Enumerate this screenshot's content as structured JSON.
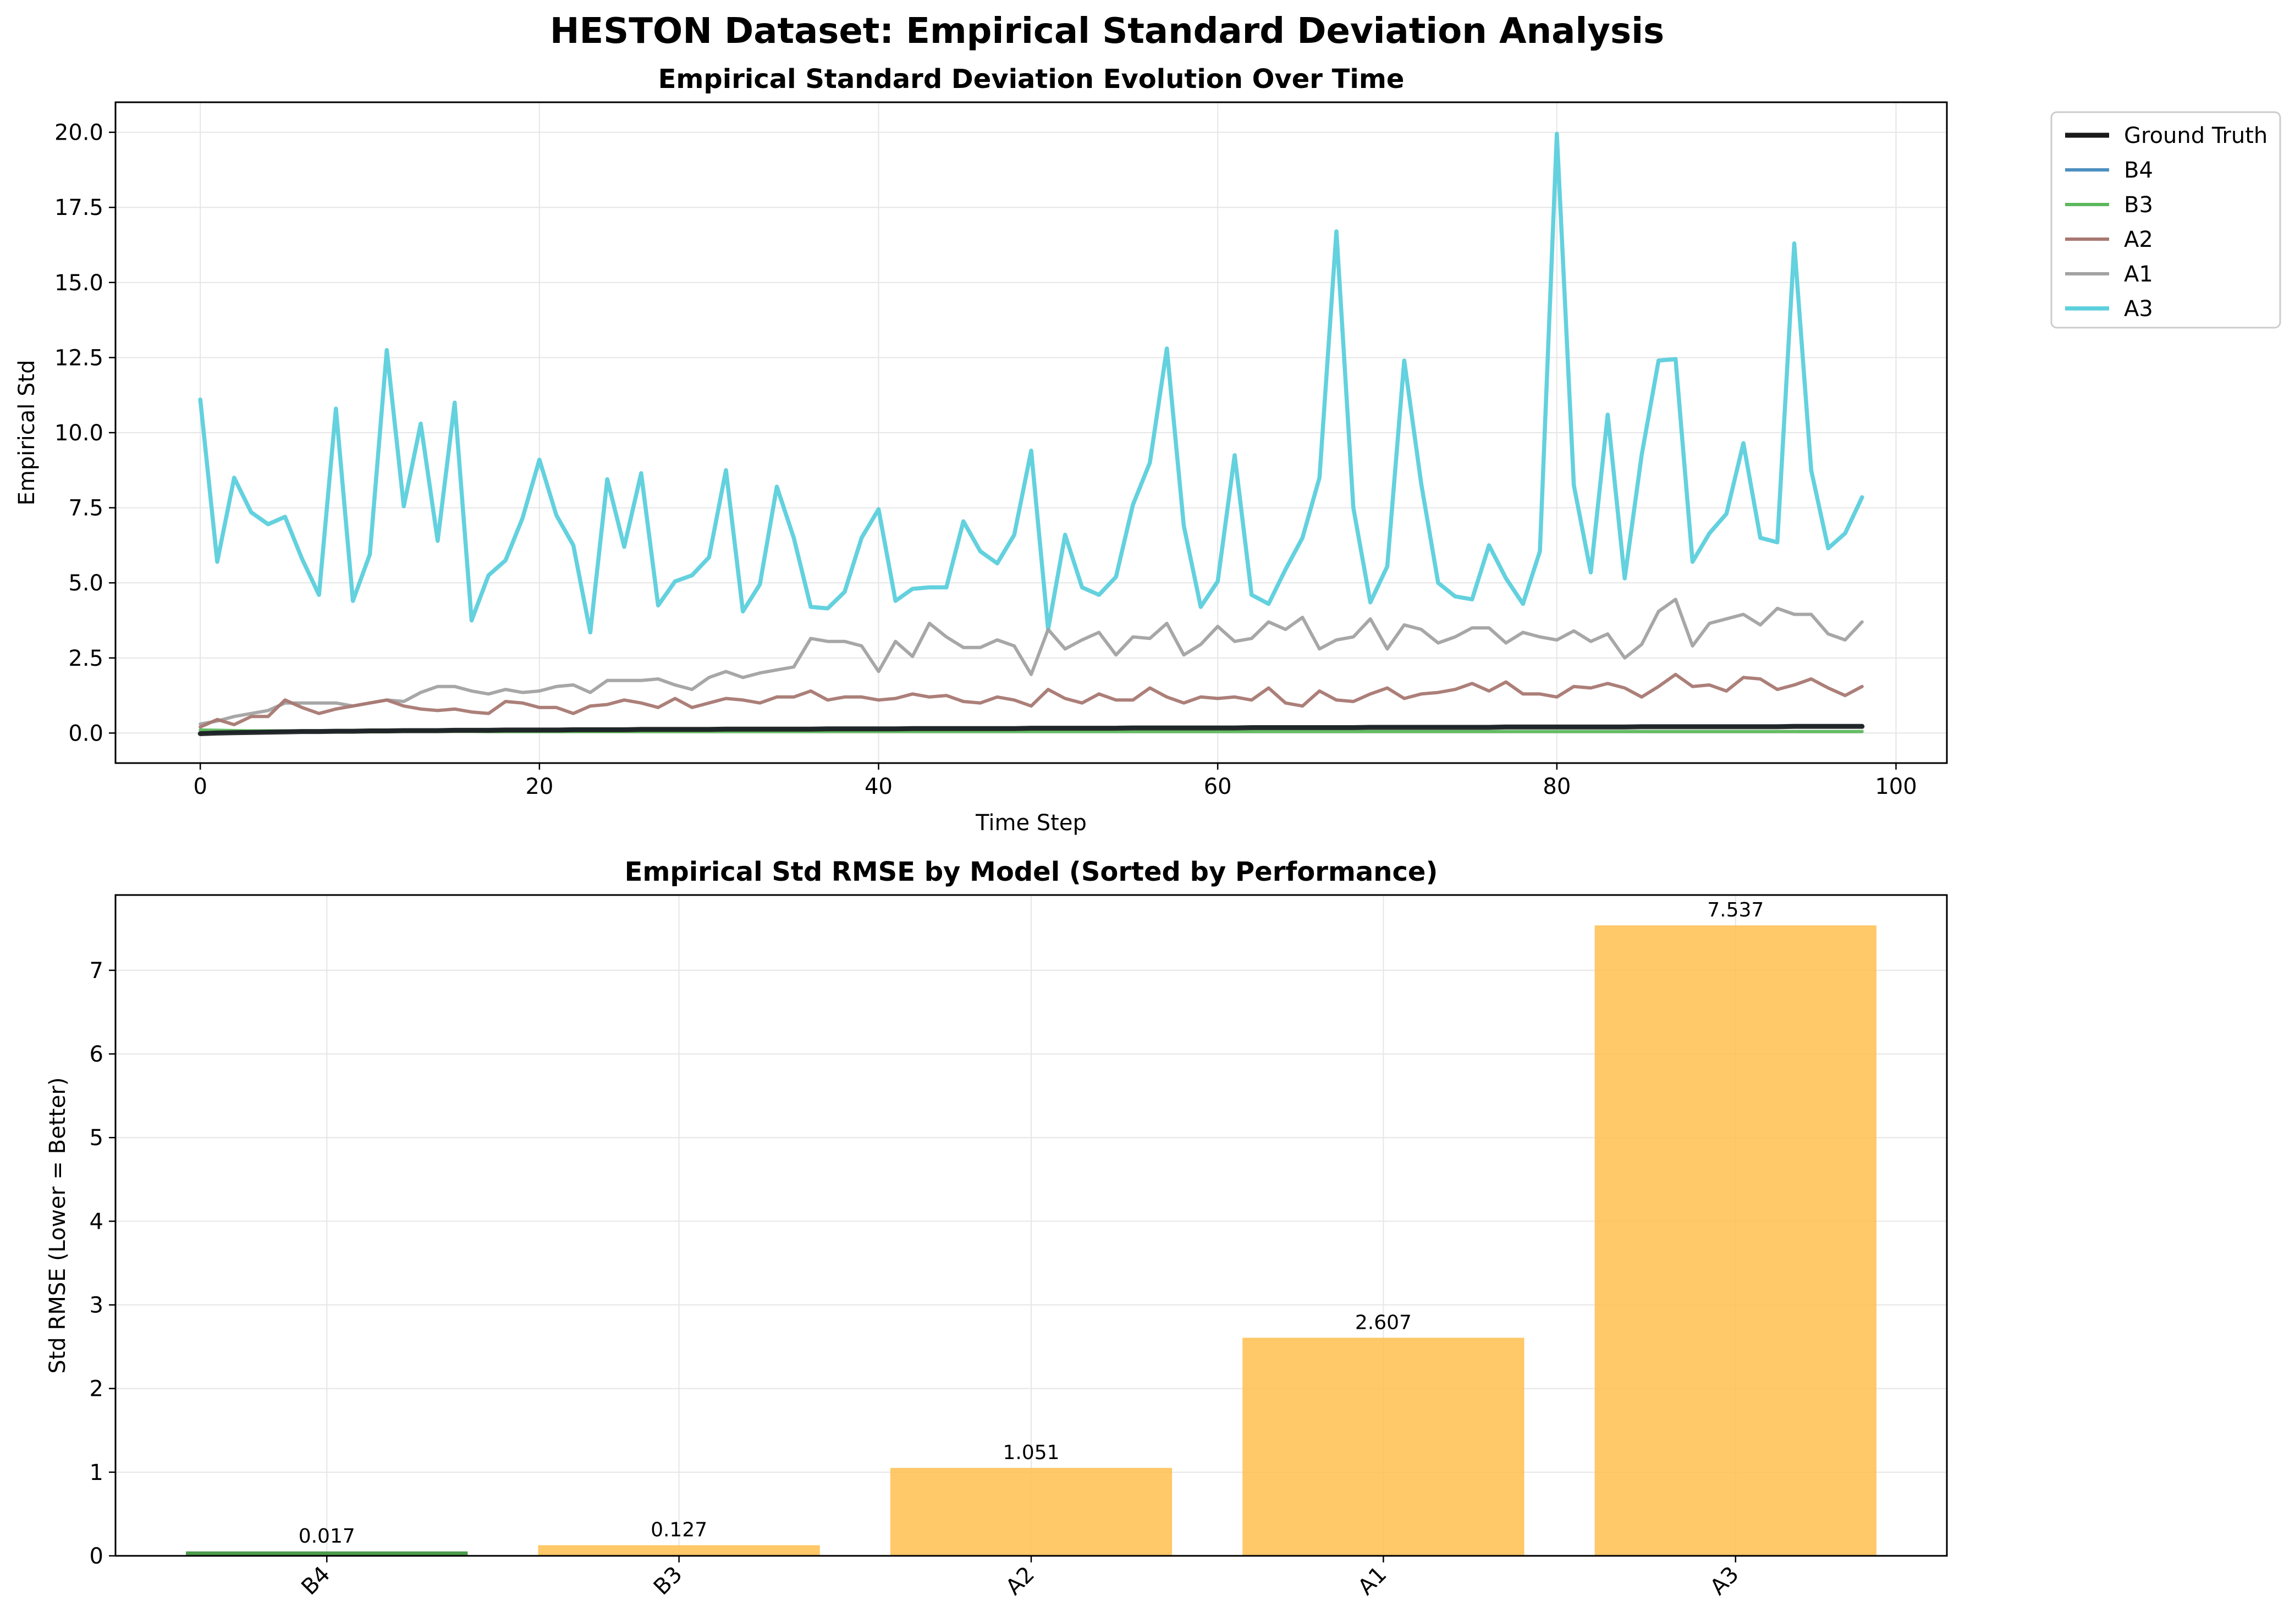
{
  "figure": {
    "title": "HESTON Dataset: Empirical Standard Deviation Analysis"
  },
  "chart_data": [
    {
      "type": "line",
      "title": "Empirical Standard Deviation Evolution Over Time",
      "xlabel": "Time Step",
      "ylabel": "Empirical Std",
      "xlim": [
        -5,
        103
      ],
      "ylim": [
        -1,
        21
      ],
      "xticks": [
        "0",
        "20",
        "40",
        "60",
        "80",
        "100"
      ],
      "yticks": [
        "0.0",
        "2.5",
        "5.0",
        "7.5",
        "10.0",
        "12.5",
        "15.0",
        "17.5",
        "20.0"
      ],
      "grid": true,
      "legend_placement": "outside-top-right",
      "x_start": 0,
      "x_step": 1,
      "series": [
        {
          "name": "Ground Truth",
          "color": "#1a1a1a",
          "linewidth": 3,
          "values": [
            -0.02,
            0.0,
            0.01,
            0.02,
            0.03,
            0.04,
            0.05,
            0.05,
            0.06,
            0.06,
            0.07,
            0.07,
            0.08,
            0.08,
            0.08,
            0.09,
            0.09,
            0.09,
            0.1,
            0.1,
            0.1,
            0.1,
            0.11,
            0.11,
            0.11,
            0.11,
            0.12,
            0.12,
            0.12,
            0.12,
            0.12,
            0.13,
            0.13,
            0.13,
            0.13,
            0.13,
            0.13,
            0.14,
            0.14,
            0.14,
            0.14,
            0.14,
            0.15,
            0.15,
            0.15,
            0.15,
            0.15,
            0.15,
            0.15,
            0.16,
            0.16,
            0.16,
            0.16,
            0.16,
            0.16,
            0.17,
            0.17,
            0.17,
            0.17,
            0.17,
            0.17,
            0.17,
            0.18,
            0.18,
            0.18,
            0.18,
            0.18,
            0.18,
            0.18,
            0.19,
            0.19,
            0.19,
            0.19,
            0.19,
            0.19,
            0.19,
            0.19,
            0.2,
            0.2,
            0.2,
            0.2,
            0.2,
            0.2,
            0.2,
            0.2,
            0.21,
            0.21,
            0.21,
            0.21,
            0.21,
            0.21,
            0.21,
            0.21,
            0.21,
            0.22,
            0.22,
            0.22,
            0.22,
            0.22
          ]
        },
        {
          "name": "B4",
          "color": "#4d8fc0",
          "linewidth": 2,
          "values": [
            -0.01,
            0.01,
            0.02,
            0.03,
            0.04,
            0.05,
            0.06,
            0.06,
            0.07,
            0.07,
            0.08,
            0.08,
            0.09,
            0.09,
            0.09,
            0.1,
            0.1,
            0.1,
            0.11,
            0.11,
            0.11,
            0.11,
            0.12,
            0.12,
            0.12,
            0.12,
            0.13,
            0.13,
            0.13,
            0.13,
            0.13,
            0.14,
            0.14,
            0.14,
            0.14,
            0.14,
            0.14,
            0.15,
            0.15,
            0.15,
            0.15,
            0.15,
            0.16,
            0.16,
            0.16,
            0.16,
            0.16,
            0.16,
            0.16,
            0.17,
            0.17,
            0.17,
            0.17,
            0.17,
            0.17,
            0.18,
            0.18,
            0.18,
            0.18,
            0.18,
            0.18,
            0.18,
            0.19,
            0.19,
            0.19,
            0.19,
            0.19,
            0.19,
            0.19,
            0.2,
            0.2,
            0.2,
            0.2,
            0.2,
            0.2,
            0.2,
            0.2,
            0.21,
            0.21,
            0.21,
            0.21,
            0.21,
            0.21,
            0.21,
            0.21,
            0.22,
            0.22,
            0.22,
            0.22,
            0.22,
            0.22,
            0.22,
            0.22,
            0.22,
            0.23,
            0.23,
            0.23,
            0.23,
            0.23
          ]
        },
        {
          "name": "B3",
          "color": "#5cb85c",
          "linewidth": 2,
          "values": [
            0.1,
            0.09,
            0.08,
            0.07,
            0.07,
            0.07,
            0.06,
            0.06,
            0.06,
            0.06,
            0.06,
            0.06,
            0.06,
            0.06,
            0.06,
            0.06,
            0.06,
            0.05,
            0.05,
            0.05,
            0.05,
            0.05,
            0.05,
            0.05,
            0.05,
            0.05,
            0.05,
            0.05,
            0.05,
            0.05,
            0.05,
            0.05,
            0.05,
            0.05,
            0.05,
            0.05,
            0.05,
            0.05,
            0.05,
            0.05,
            0.05,
            0.05,
            0.05,
            0.05,
            0.05,
            0.05,
            0.05,
            0.05,
            0.05,
            0.05,
            0.05,
            0.05,
            0.05,
            0.05,
            0.05,
            0.05,
            0.05,
            0.05,
            0.05,
            0.05,
            0.05,
            0.05,
            0.05,
            0.05,
            0.05,
            0.05,
            0.05,
            0.05,
            0.05,
            0.05,
            0.05,
            0.05,
            0.05,
            0.05,
            0.05,
            0.05,
            0.05,
            0.05,
            0.05,
            0.05,
            0.05,
            0.05,
            0.05,
            0.05,
            0.05,
            0.05,
            0.05,
            0.05,
            0.05,
            0.05,
            0.05,
            0.05,
            0.05,
            0.05,
            0.05,
            0.05,
            0.05,
            0.05,
            0.05
          ]
        },
        {
          "name": "A2",
          "color": "#a87872",
          "linewidth": 2,
          "values": [
            0.2,
            0.45,
            0.28,
            0.55,
            0.55,
            1.1,
            0.85,
            0.65,
            0.8,
            0.9,
            1.0,
            1.1,
            0.9,
            0.8,
            0.75,
            0.8,
            0.7,
            0.65,
            1.05,
            1.0,
            0.85,
            0.85,
            0.65,
            0.9,
            0.95,
            1.1,
            1.0,
            0.85,
            1.15,
            0.85,
            1.0,
            1.15,
            1.1,
            1.0,
            1.2,
            1.2,
            1.4,
            1.1,
            1.2,
            1.2,
            1.1,
            1.15,
            1.3,
            1.2,
            1.25,
            1.05,
            1.0,
            1.2,
            1.1,
            0.9,
            1.45,
            1.15,
            1.0,
            1.3,
            1.1,
            1.1,
            1.5,
            1.2,
            1.0,
            1.2,
            1.15,
            1.2,
            1.1,
            1.5,
            1.0,
            0.9,
            1.4,
            1.1,
            1.05,
            1.3,
            1.5,
            1.15,
            1.3,
            1.35,
            1.45,
            1.65,
            1.4,
            1.7,
            1.3,
            1.3,
            1.2,
            1.55,
            1.5,
            1.65,
            1.5,
            1.2,
            1.55,
            1.95,
            1.55,
            1.6,
            1.4,
            1.85,
            1.8,
            1.45,
            1.6,
            1.8,
            1.5,
            1.25,
            1.55
          ]
        },
        {
          "name": "A1",
          "color": "#a2a2a2",
          "linewidth": 2,
          "values": [
            0.3,
            0.4,
            0.55,
            0.65,
            0.75,
            1.0,
            1.0,
            1.0,
            1.0,
            0.9,
            1.0,
            1.1,
            1.05,
            1.35,
            1.55,
            1.55,
            1.4,
            1.3,
            1.45,
            1.35,
            1.4,
            1.55,
            1.6,
            1.35,
            1.75,
            1.75,
            1.75,
            1.8,
            1.6,
            1.45,
            1.85,
            2.05,
            1.85,
            2.0,
            2.1,
            2.2,
            3.15,
            3.05,
            3.05,
            2.9,
            2.05,
            3.05,
            2.55,
            3.65,
            3.2,
            2.85,
            2.85,
            3.1,
            2.9,
            1.95,
            3.45,
            2.8,
            3.1,
            3.35,
            2.6,
            3.2,
            3.15,
            3.65,
            2.6,
            2.95,
            3.55,
            3.05,
            3.15,
            3.7,
            3.45,
            3.85,
            2.8,
            3.1,
            3.2,
            3.8,
            2.8,
            3.6,
            3.45,
            3.0,
            3.2,
            3.5,
            3.5,
            3.0,
            3.35,
            3.2,
            3.1,
            3.4,
            3.05,
            3.3,
            2.5,
            2.95,
            4.05,
            4.45,
            2.9,
            3.65,
            3.8,
            3.95,
            3.6,
            4.15,
            3.95,
            3.95,
            3.3,
            3.1,
            3.7
          ]
        },
        {
          "name": "A3",
          "color": "#5bcfdc",
          "linewidth": 2.5,
          "values": [
            11.1,
            5.7,
            8.5,
            7.35,
            6.95,
            7.2,
            5.8,
            4.6,
            10.8,
            4.4,
            5.95,
            12.75,
            7.55,
            10.3,
            6.4,
            11.0,
            3.75,
            5.25,
            5.75,
            7.15,
            9.1,
            7.25,
            6.25,
            3.35,
            8.45,
            6.2,
            8.65,
            4.25,
            5.05,
            5.25,
            5.85,
            8.75,
            4.05,
            4.95,
            8.2,
            6.5,
            4.2,
            4.15,
            4.7,
            6.5,
            7.45,
            4.4,
            4.8,
            4.85,
            4.85,
            7.05,
            6.05,
            5.65,
            6.6,
            9.4,
            3.45,
            6.6,
            4.85,
            4.6,
            5.2,
            7.6,
            9.0,
            12.8,
            6.9,
            4.2,
            5.05,
            9.25,
            4.6,
            4.3,
            5.45,
            6.5,
            8.5,
            16.7,
            7.5,
            4.35,
            5.55,
            12.4,
            8.3,
            5.0,
            4.55,
            4.45,
            6.25,
            5.15,
            4.3,
            6.05,
            19.95,
            8.25,
            5.35,
            10.6,
            5.15,
            9.25,
            12.4,
            12.45,
            5.7,
            6.65,
            7.3,
            9.65,
            6.5,
            6.35,
            16.3,
            8.75,
            6.15,
            6.65,
            7.85
          ]
        }
      ]
    },
    {
      "type": "bar",
      "title": "Empirical Std RMSE by Model (Sorted by Performance)",
      "xlabel": "",
      "ylabel": "Std RMSE (Lower = Better)",
      "categories": [
        "B4",
        "B3",
        "A2",
        "A1",
        "A3"
      ],
      "values": [
        0.017,
        0.127,
        1.051,
        2.607,
        7.537
      ],
      "value_labels": [
        "0.017",
        "0.127",
        "1.051",
        "2.607",
        "7.537"
      ],
      "bar_colors": [
        "#2e8b2e",
        "#ffbe4d",
        "#ffbe4d",
        "#ffbe4d",
        "#ffbe4d"
      ],
      "bar_fill_alpha": 0.85,
      "ylim": [
        0,
        7.9
      ],
      "yticks": [
        "0",
        "1",
        "2",
        "3",
        "4",
        "5",
        "6",
        "7"
      ],
      "grid": true
    }
  ]
}
